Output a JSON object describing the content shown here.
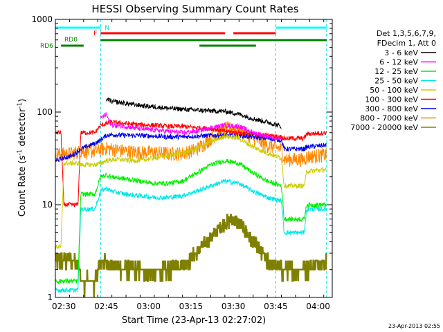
{
  "chart_data": {
    "type": "line",
    "title": "HESSI Observing Summary Count Rates",
    "xlabel": "Start Time (23-Apr-13 02:27:02)",
    "ylabel_main": "Count Rate (s",
    "ylabel_sup1": "-1",
    "ylabel_mid": " detector",
    "ylabel_sup2": "-1",
    "ylabel_end": ")",
    "yscale": "log",
    "ylim": [
      1,
      1000
    ],
    "y_ticks": [
      {
        "value": 1,
        "label": "1"
      },
      {
        "value": 10,
        "label": "10"
      },
      {
        "value": 100,
        "label": "100"
      },
      {
        "value": 1000,
        "label": "1000"
      }
    ],
    "xlim_min": [
      0,
      98
    ],
    "x_ticks": [
      {
        "t": 3,
        "label": "02:30"
      },
      {
        "t": 18,
        "label": "02:45"
      },
      {
        "t": 33,
        "label": "03:00"
      },
      {
        "t": 48,
        "label": "03:15"
      },
      {
        "t": 63,
        "label": "03:30"
      },
      {
        "t": 78,
        "label": "03:45"
      },
      {
        "t": 93,
        "label": "04:00"
      }
    ],
    "legend_header": [
      "Det 1,3,5,6,7,9,",
      "FDecim 1, Att 0"
    ],
    "series": [
      {
        "name": "3 - 6 keV",
        "color": "#000000",
        "points": [
          [
            18,
            140
          ],
          [
            20,
            130
          ],
          [
            30,
            118
          ],
          [
            40,
            110
          ],
          [
            50,
            105
          ],
          [
            55,
            103
          ],
          [
            60,
            102
          ],
          [
            65,
            95
          ],
          [
            70,
            85
          ],
          [
            75,
            78
          ],
          [
            80,
            70
          ]
        ]
      },
      {
        "name": "6 - 12 keV",
        "color": "#ff00ff",
        "points": [
          [
            16,
            85
          ],
          [
            18,
            95
          ],
          [
            19,
            80
          ],
          [
            20,
            72
          ],
          [
            25,
            70
          ],
          [
            30,
            66
          ],
          [
            35,
            64
          ],
          [
            40,
            62
          ],
          [
            45,
            60
          ],
          [
            50,
            62
          ],
          [
            55,
            68
          ],
          [
            60,
            72
          ],
          [
            65,
            70
          ],
          [
            70,
            60
          ],
          [
            75,
            55
          ],
          [
            80,
            50
          ]
        ]
      },
      {
        "name": "12 - 25 keV",
        "color": "#00ee00",
        "points": [
          [
            0,
            1.5
          ],
          [
            8,
            1.5
          ],
          [
            9,
            13
          ],
          [
            14,
            13
          ],
          [
            16,
            20
          ],
          [
            18,
            21
          ],
          [
            20,
            20
          ],
          [
            25,
            19
          ],
          [
            30,
            18
          ],
          [
            35,
            17
          ],
          [
            40,
            17
          ],
          [
            45,
            18
          ],
          [
            50,
            22
          ],
          [
            55,
            27
          ],
          [
            60,
            30
          ],
          [
            65,
            28
          ],
          [
            70,
            22
          ],
          [
            75,
            18
          ],
          [
            80,
            16
          ],
          [
            81,
            7
          ],
          [
            88,
            7
          ],
          [
            89,
            10
          ],
          [
            96,
            10
          ]
        ]
      },
      {
        "name": "25 - 50 keV",
        "color": "#00e6e6",
        "points": [
          [
            0,
            1.2
          ],
          [
            8,
            1.2
          ],
          [
            9,
            9
          ],
          [
            14,
            9
          ],
          [
            16,
            14
          ],
          [
            18,
            15
          ],
          [
            20,
            14
          ],
          [
            25,
            13
          ],
          [
            30,
            12.5
          ],
          [
            35,
            12
          ],
          [
            40,
            12
          ],
          [
            45,
            12.5
          ],
          [
            50,
            14
          ],
          [
            55,
            16
          ],
          [
            60,
            18
          ],
          [
            65,
            17
          ],
          [
            70,
            14
          ],
          [
            75,
            12
          ],
          [
            80,
            11
          ],
          [
            81,
            5
          ],
          [
            88,
            5
          ],
          [
            89,
            9
          ],
          [
            96,
            9
          ]
        ]
      },
      {
        "name": "50 - 100 keV",
        "color": "#cccc00",
        "points": [
          [
            0,
            3.5
          ],
          [
            2,
            3.5
          ],
          [
            3,
            28
          ],
          [
            8,
            28
          ],
          [
            9,
            27
          ],
          [
            14,
            27
          ],
          [
            16,
            28
          ],
          [
            18,
            30
          ],
          [
            22,
            31
          ],
          [
            26,
            30
          ],
          [
            30,
            30
          ],
          [
            35,
            32
          ],
          [
            40,
            34
          ],
          [
            45,
            36
          ],
          [
            50,
            40
          ],
          [
            55,
            48
          ],
          [
            60,
            55
          ],
          [
            65,
            52
          ],
          [
            70,
            42
          ],
          [
            75,
            36
          ],
          [
            80,
            32
          ],
          [
            81,
            16
          ],
          [
            88,
            16
          ],
          [
            89,
            23
          ],
          [
            96,
            24
          ]
        ]
      },
      {
        "name": "100 - 300 keV",
        "color": "#ff0000",
        "points": [
          [
            0,
            60
          ],
          [
            2,
            60
          ],
          [
            3,
            10
          ],
          [
            8,
            10
          ],
          [
            9,
            60
          ],
          [
            14,
            60
          ],
          [
            16,
            72
          ],
          [
            20,
            78
          ],
          [
            25,
            75
          ],
          [
            30,
            73
          ],
          [
            35,
            72
          ],
          [
            40,
            70
          ],
          [
            45,
            70
          ],
          [
            50,
            68
          ],
          [
            55,
            66
          ],
          [
            60,
            62
          ],
          [
            65,
            60
          ],
          [
            70,
            58
          ],
          [
            75,
            56
          ],
          [
            80,
            54
          ],
          [
            81,
            52
          ],
          [
            88,
            52
          ],
          [
            89,
            58
          ],
          [
            96,
            60
          ]
        ]
      },
      {
        "name": "300 - 800 keV",
        "color": "#0000ee",
        "points": [
          [
            0,
            30
          ],
          [
            6,
            34
          ],
          [
            9,
            40
          ],
          [
            14,
            46
          ],
          [
            16,
            50
          ],
          [
            18,
            56
          ],
          [
            20,
            57
          ],
          [
            25,
            56
          ],
          [
            30,
            56
          ],
          [
            35,
            55
          ],
          [
            40,
            54
          ],
          [
            45,
            54
          ],
          [
            50,
            55
          ],
          [
            55,
            56
          ],
          [
            60,
            56
          ],
          [
            65,
            56
          ],
          [
            70,
            54
          ],
          [
            75,
            52
          ],
          [
            80,
            50
          ],
          [
            81,
            40
          ],
          [
            88,
            40
          ],
          [
            89,
            42
          ],
          [
            96,
            44
          ]
        ]
      },
      {
        "name": "800 - 7000 keV",
        "color": "#ff8800",
        "points": [
          [
            0,
            35
          ],
          [
            6,
            36
          ],
          [
            9,
            38
          ],
          [
            14,
            38
          ],
          [
            16,
            40
          ],
          [
            18,
            41
          ],
          [
            20,
            40
          ],
          [
            25,
            38
          ],
          [
            30,
            37
          ],
          [
            35,
            37
          ],
          [
            40,
            36
          ],
          [
            45,
            36
          ],
          [
            50,
            40
          ],
          [
            55,
            52
          ],
          [
            60,
            66
          ],
          [
            63,
            68
          ],
          [
            66,
            62
          ],
          [
            70,
            52
          ],
          [
            75,
            44
          ],
          [
            80,
            40
          ],
          [
            81,
            31
          ],
          [
            88,
            31
          ],
          [
            89,
            33
          ],
          [
            96,
            35
          ]
        ]
      },
      {
        "name": "7000 - 20000 keV",
        "color": "#808000",
        "points": [
          [
            0,
            2.5
          ],
          [
            8,
            2.5
          ],
          [
            9,
            1.5
          ],
          [
            14,
            1.5
          ],
          [
            16,
            2.5
          ],
          [
            20,
            2.2
          ],
          [
            25,
            2.0
          ],
          [
            30,
            2.0
          ],
          [
            35,
            1.9
          ],
          [
            40,
            2.0
          ],
          [
            45,
            2.3
          ],
          [
            50,
            3.0
          ],
          [
            55,
            4.5
          ],
          [
            60,
            6.5
          ],
          [
            63,
            7
          ],
          [
            66,
            6
          ],
          [
            70,
            4
          ],
          [
            75,
            2.5
          ],
          [
            80,
            2.0
          ],
          [
            88,
            2.0
          ],
          [
            96,
            2.5
          ]
        ]
      }
    ],
    "attenuator_labels": [
      "N",
      "F"
    ],
    "rd_labels": [
      "RD0",
      "RD6"
    ],
    "status_bars": [
      {
        "label_key": "N",
        "color": "#00ffff",
        "segments": [
          [
            0,
            16
          ],
          [
            78,
            96
          ]
        ]
      },
      {
        "label_key": "F",
        "color": "#ff0000",
        "segments": [
          [
            16,
            60
          ],
          [
            63,
            78
          ]
        ]
      },
      {
        "label_key": "RD0",
        "color": "#008000",
        "segments": [
          [
            16,
            96
          ]
        ]
      },
      {
        "label_key": "RD6",
        "color": "#008000",
        "segments": [
          [
            2,
            10
          ],
          [
            51,
            71
          ]
        ]
      }
    ],
    "vlines_cyan": [
      16,
      78,
      96
    ],
    "timestamp": "23-Apr-2013 02:55"
  }
}
